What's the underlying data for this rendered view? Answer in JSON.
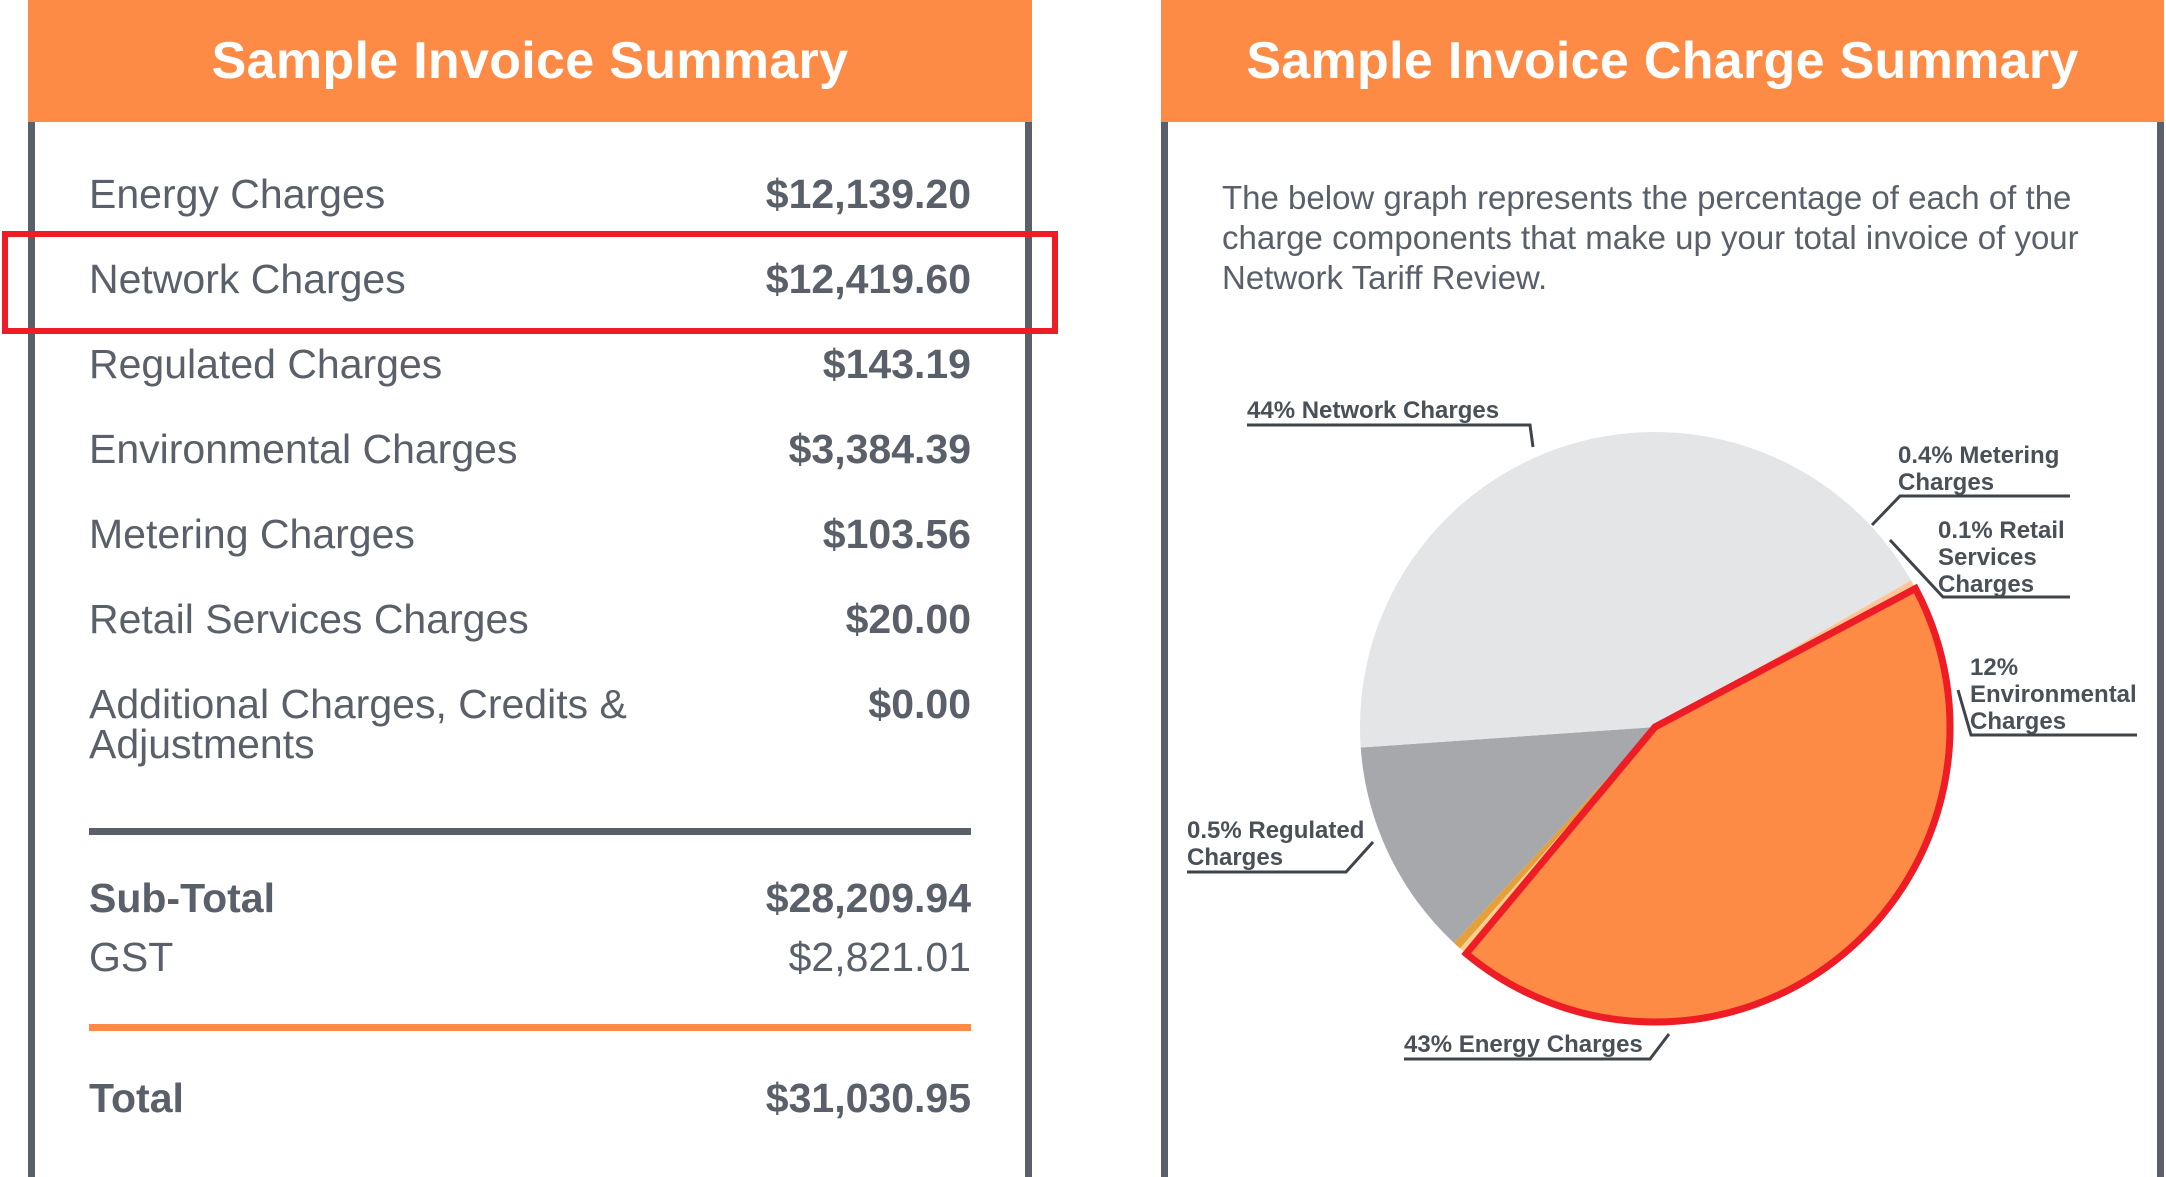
{
  "left_panel": {
    "title": "Sample Invoice Summary",
    "rows": [
      {
        "label": "Energy Charges",
        "value": "$12,139.20"
      },
      {
        "label": "Network Charges",
        "value": "$12,419.60"
      },
      {
        "label": "Regulated Charges",
        "value": "$143.19"
      },
      {
        "label": "Environmental Charges",
        "value": "$3,384.39"
      },
      {
        "label": "Metering Charges",
        "value": "$103.56"
      },
      {
        "label": "Retail Services Charges",
        "value": "$20.00"
      },
      {
        "label": "Additional Charges, Credits &",
        "label2": "Adjustments",
        "value": "$0.00"
      }
    ],
    "subtotal": {
      "label": "Sub-Total",
      "value": "$28,209.94"
    },
    "gst": {
      "label": "GST",
      "value": "$2,821.01"
    },
    "total": {
      "label": "Total",
      "value": "$31,030.95"
    },
    "highlighted_row": "Network Charges"
  },
  "right_panel": {
    "title": "Sample Invoice Charge Summary",
    "description": "The below graph represents the percentage of each of the charge components that make up your total invoice of your Network Tariff Review."
  },
  "colors": {
    "header": "#fe8b45",
    "border": "#5a6069",
    "highlight": "#ee1c25",
    "network": "#fe8b45",
    "metering": "#fdd18d",
    "retail": "#e4a03a",
    "environmental": "#a6a8ac",
    "energy": "#e4e5e6",
    "regulated": "#fec596"
  },
  "chart_data": {
    "type": "pie",
    "title": "",
    "slices": [
      {
        "name": "Network Charges",
        "label_lines": [
          "44% Network Charges"
        ],
        "percent": 44,
        "value": 12419.6,
        "color": "#fe8b45",
        "highlighted": true
      },
      {
        "name": "Metering Charges",
        "label_lines": [
          "0.4% Metering",
          "Charges"
        ],
        "percent": 0.4,
        "value": 103.56,
        "color": "#fdd18d"
      },
      {
        "name": "Retail Services Charges",
        "label_lines": [
          "0.1% Retail",
          "Services",
          "Charges"
        ],
        "percent": 0.1,
        "value": 20.0,
        "color": "#e4a03a"
      },
      {
        "name": "Environmental Charges",
        "label_lines": [
          "12%",
          "Environmental",
          "Charges"
        ],
        "percent": 12,
        "value": 3384.39,
        "color": "#a6a8ac"
      },
      {
        "name": "Energy Charges",
        "label_lines": [
          "43% Energy Charges"
        ],
        "percent": 43,
        "value": 12139.2,
        "color": "#e4e5e6"
      },
      {
        "name": "Regulated Charges",
        "label_lines": [
          "0.5% Regulated",
          "Charges"
        ],
        "percent": 0.5,
        "value": 143.19,
        "color": "#fec596"
      }
    ]
  }
}
